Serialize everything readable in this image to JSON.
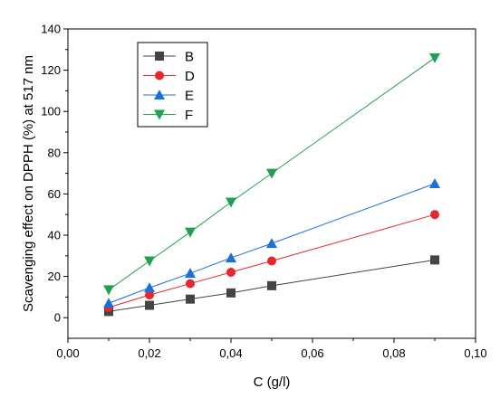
{
  "chart_data": {
    "type": "line",
    "title": "",
    "xlabel": "C (g/l)",
    "ylabel": "Scavenging effect on DPPH (%) at 517 nm",
    "xlim": [
      0.0,
      0.1
    ],
    "ylim": [
      -10,
      140
    ],
    "x_ticks": [
      0.0,
      0.02,
      0.04,
      0.06,
      0.08,
      0.1
    ],
    "x_tick_labels": [
      "0,00",
      "0,02",
      "0,04",
      "0,06",
      "0,08",
      "0,10"
    ],
    "y_ticks": [
      0,
      20,
      40,
      60,
      80,
      100,
      120,
      140
    ],
    "y_tick_labels": [
      "0",
      "20",
      "40",
      "60",
      "80",
      "100",
      "120",
      "140"
    ],
    "grid": false,
    "legend_position": "top-left",
    "x": [
      0.01,
      0.02,
      0.03,
      0.04,
      0.05,
      0.09
    ],
    "series": [
      {
        "name": "B",
        "color": "#444444",
        "marker": "square",
        "values": [
          3,
          6,
          9,
          12,
          15.5,
          28
        ]
      },
      {
        "name": "D",
        "color": "#e8262b",
        "marker": "circle",
        "values": [
          5,
          11,
          16.5,
          22,
          27.5,
          50
        ]
      },
      {
        "name": "E",
        "color": "#1c6fd6",
        "marker": "triangle-up",
        "values": [
          7,
          14.5,
          21.5,
          29,
          36,
          65
        ]
      },
      {
        "name": "F",
        "color": "#20a050",
        "marker": "triangle-down",
        "values": [
          13.5,
          27.5,
          41.5,
          56,
          70,
          126
        ]
      }
    ]
  }
}
